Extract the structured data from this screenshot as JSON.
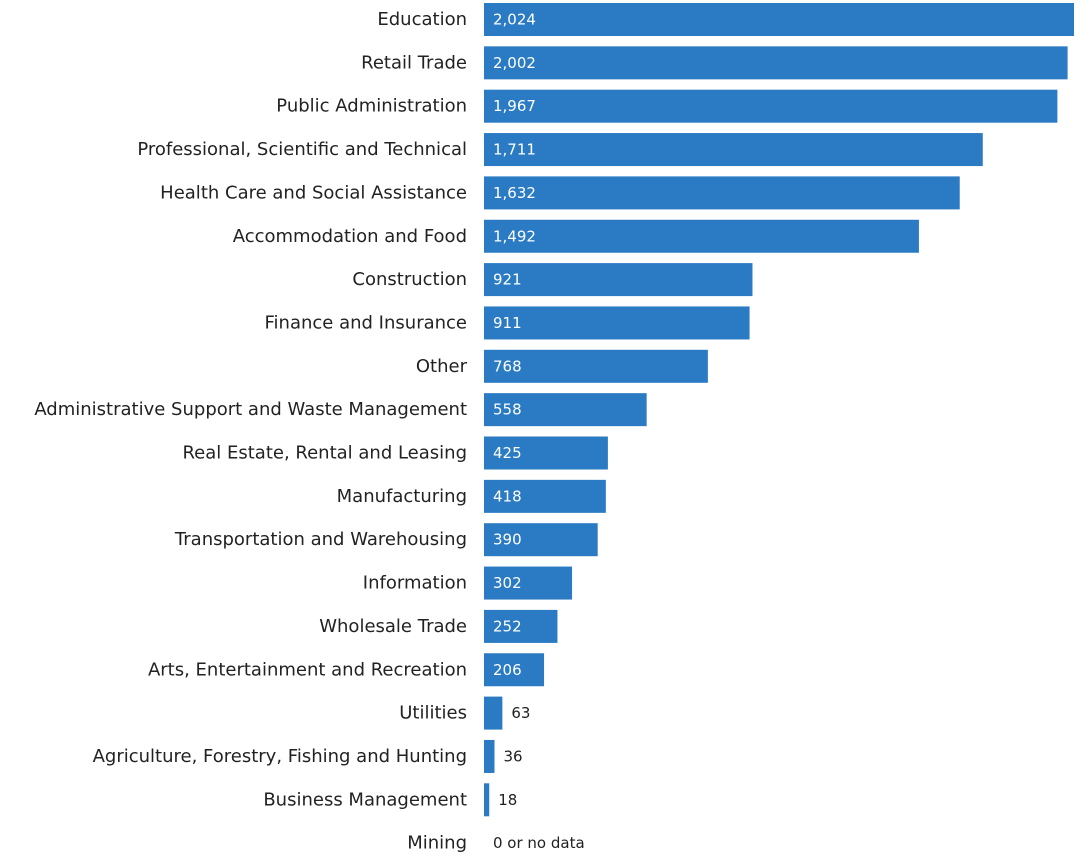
{
  "chart_data": {
    "type": "bar",
    "orientation": "horizontal",
    "categories": [
      "Education",
      "Retail Trade",
      "Public Administration",
      "Professional, Scientific and Technical",
      "Health Care and Social Assistance",
      "Accommodation and Food",
      "Construction",
      "Finance and Insurance",
      "Other",
      "Administrative Support and Waste Management",
      "Real Estate, Rental and Leasing",
      "Manufacturing",
      "Transportation and Warehousing",
      "Information",
      "Wholesale Trade",
      "Arts, Entertainment and Recreation",
      "Utilities",
      "Agriculture, Forestry, Fishing and Hunting",
      "Business Management",
      "Mining"
    ],
    "values": [
      2024,
      2002,
      1967,
      1711,
      1632,
      1492,
      921,
      911,
      768,
      558,
      425,
      418,
      390,
      302,
      252,
      206,
      63,
      36,
      18,
      0
    ],
    "value_labels": [
      "2,024",
      "2,002",
      "1,967",
      "1,711",
      "1,632",
      "1,492",
      "921",
      "911",
      "768",
      "558",
      "425",
      "418",
      "390",
      "302",
      "252",
      "206",
      "63",
      "36",
      "18",
      "0 or no data"
    ],
    "title": "",
    "xlabel": "",
    "ylabel": "",
    "xlim": [
      0,
      2024
    ],
    "grid": false,
    "legend": "none",
    "bar_color": "#2a7bc4"
  }
}
